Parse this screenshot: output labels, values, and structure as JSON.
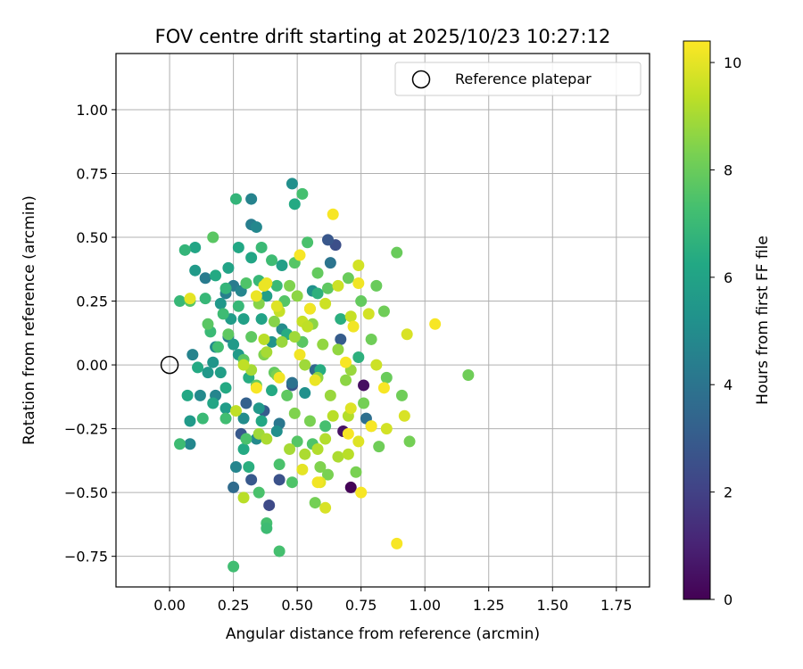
{
  "chart_data": {
    "type": "scatter",
    "title": "FOV centre drift starting at 2025/10/23 10:27:12",
    "xlabel": "Angular distance from reference (arcmin)",
    "ylabel": "Rotation from reference (arcmin)",
    "xlim": [
      -0.21,
      1.88
    ],
    "ylim": [
      -0.87,
      1.22
    ],
    "xticks": [
      0.0,
      0.25,
      0.5,
      0.75,
      1.0,
      1.25,
      1.5,
      1.75
    ],
    "xtick_labels": [
      "0.00",
      "0.25",
      "0.50",
      "0.75",
      "1.00",
      "1.25",
      "1.50",
      "1.75"
    ],
    "yticks": [
      -0.75,
      -0.5,
      -0.25,
      0.0,
      0.25,
      0.5,
      0.75,
      1.0
    ],
    "ytick_labels": [
      "−0.75",
      "−0.50",
      "−0.25",
      "0.00",
      "0.25",
      "0.50",
      "0.75",
      "1.00"
    ],
    "grid": true,
    "legend": {
      "position": "top-right",
      "entries": [
        "Reference platepar"
      ]
    },
    "reference_point": {
      "label": "Reference platepar",
      "x": 0.0,
      "y": 0.0
    },
    "colorbar": {
      "label": "Hours from first FF file",
      "colormap": "viridis",
      "range": [
        0,
        10.4
      ],
      "ticks": [
        0,
        2,
        4,
        6,
        8,
        10
      ],
      "tick_labels": [
        "0",
        "2",
        "4",
        "6",
        "8",
        "10"
      ]
    },
    "points": [
      {
        "x": 0.71,
        "y": -0.48,
        "h": 0.1
      },
      {
        "x": 0.76,
        "y": -0.08,
        "h": 0.4
      },
      {
        "x": 0.68,
        "y": -0.26,
        "h": 0.5
      },
      {
        "x": 0.39,
        "y": -0.55,
        "h": 2.3
      },
      {
        "x": 0.43,
        "y": -0.45,
        "h": 2.6
      },
      {
        "x": 0.32,
        "y": -0.45,
        "h": 2.9
      },
      {
        "x": 0.28,
        "y": -0.27,
        "h": 2.9
      },
      {
        "x": 0.48,
        "y": -0.08,
        "h": 2.7
      },
      {
        "x": 0.65,
        "y": 0.47,
        "h": 2.5
      },
      {
        "x": 0.62,
        "y": 0.49,
        "h": 2.8
      },
      {
        "x": 0.67,
        "y": 0.1,
        "h": 3.0
      },
      {
        "x": 0.3,
        "y": -0.15,
        "h": 3.2
      },
      {
        "x": 0.37,
        "y": -0.18,
        "h": 3.0
      },
      {
        "x": 0.25,
        "y": -0.48,
        "h": 3.6
      },
      {
        "x": 0.77,
        "y": -0.21,
        "h": 3.8
      },
      {
        "x": 0.63,
        "y": 0.4,
        "h": 4.0
      },
      {
        "x": 0.57,
        "y": -0.02,
        "h": 3.5
      },
      {
        "x": 0.43,
        "y": -0.23,
        "h": 4.1
      },
      {
        "x": 0.48,
        "y": -0.07,
        "h": 3.9
      },
      {
        "x": 0.25,
        "y": 0.31,
        "h": 4.3
      },
      {
        "x": 0.22,
        "y": 0.28,
        "h": 4.5
      },
      {
        "x": 0.14,
        "y": 0.34,
        "h": 4.3
      },
      {
        "x": 0.32,
        "y": 0.55,
        "h": 4.4
      },
      {
        "x": 0.34,
        "y": 0.54,
        "h": 4.8
      },
      {
        "x": 0.32,
        "y": 0.65,
        "h": 4.6
      },
      {
        "x": 0.28,
        "y": 0.29,
        "h": 4.7
      },
      {
        "x": 0.18,
        "y": 0.07,
        "h": 4.9
      },
      {
        "x": 0.23,
        "y": 0.11,
        "h": 4.4
      },
      {
        "x": 0.08,
        "y": -0.31,
        "h": 4.8
      },
      {
        "x": 0.12,
        "y": -0.12,
        "h": 4.9
      },
      {
        "x": 0.09,
        "y": 0.04,
        "h": 4.6
      },
      {
        "x": 0.18,
        "y": -0.12,
        "h": 4.7
      },
      {
        "x": 0.26,
        "y": -0.4,
        "h": 4.7
      },
      {
        "x": 0.29,
        "y": -0.21,
        "h": 5.0
      },
      {
        "x": 0.34,
        "y": -0.29,
        "h": 4.9
      },
      {
        "x": 0.42,
        "y": -0.26,
        "h": 5.1
      },
      {
        "x": 0.53,
        "y": -0.11,
        "h": 5.2
      },
      {
        "x": 0.44,
        "y": 0.14,
        "h": 5.0
      },
      {
        "x": 0.48,
        "y": 0.71,
        "h": 5.1
      },
      {
        "x": 0.56,
        "y": 0.29,
        "h": 5.2
      },
      {
        "x": 0.4,
        "y": 0.09,
        "h": 5.3
      },
      {
        "x": 0.2,
        "y": 0.24,
        "h": 5.5
      },
      {
        "x": 0.17,
        "y": 0.01,
        "h": 5.4
      },
      {
        "x": 0.1,
        "y": 0.37,
        "h": 5.6
      },
      {
        "x": 0.15,
        "y": -0.03,
        "h": 5.5
      },
      {
        "x": 0.08,
        "y": -0.22,
        "h": 5.6
      },
      {
        "x": 0.22,
        "y": -0.17,
        "h": 5.7
      },
      {
        "x": 0.35,
        "y": -0.17,
        "h": 5.5
      },
      {
        "x": 0.2,
        "y": -0.03,
        "h": 5.8
      },
      {
        "x": 0.27,
        "y": 0.04,
        "h": 5.6
      },
      {
        "x": 0.29,
        "y": 0.18,
        "h": 5.9
      },
      {
        "x": 0.24,
        "y": 0.18,
        "h": 5.7
      },
      {
        "x": 0.25,
        "y": 0.08,
        "h": 5.6
      },
      {
        "x": 0.38,
        "y": 0.27,
        "h": 5.8
      },
      {
        "x": 0.44,
        "y": 0.39,
        "h": 5.9
      },
      {
        "x": 0.36,
        "y": 0.18,
        "h": 6.0
      },
      {
        "x": 0.49,
        "y": 0.63,
        "h": 6.3
      },
      {
        "x": 0.32,
        "y": 0.42,
        "h": 6.1
      },
      {
        "x": 0.27,
        "y": 0.46,
        "h": 6.2
      },
      {
        "x": 0.23,
        "y": 0.38,
        "h": 6.0
      },
      {
        "x": 0.18,
        "y": 0.35,
        "h": 6.3
      },
      {
        "x": 0.1,
        "y": 0.46,
        "h": 6.1
      },
      {
        "x": 0.07,
        "y": -0.12,
        "h": 6.2
      },
      {
        "x": 0.11,
        "y": -0.01,
        "h": 6.3
      },
      {
        "x": 0.17,
        "y": -0.15,
        "h": 6.1
      },
      {
        "x": 0.22,
        "y": -0.09,
        "h": 6.3
      },
      {
        "x": 0.31,
        "y": -0.05,
        "h": 6.4
      },
      {
        "x": 0.29,
        "y": -0.33,
        "h": 6.3
      },
      {
        "x": 0.31,
        "y": -0.4,
        "h": 6.5
      },
      {
        "x": 0.36,
        "y": -0.22,
        "h": 6.2
      },
      {
        "x": 0.4,
        "y": -0.1,
        "h": 6.3
      },
      {
        "x": 0.46,
        "y": 0.12,
        "h": 6.4
      },
      {
        "x": 0.52,
        "y": 0.09,
        "h": 6.5
      },
      {
        "x": 0.59,
        "y": -0.02,
        "h": 6.4
      },
      {
        "x": 0.58,
        "y": 0.28,
        "h": 6.6
      },
      {
        "x": 0.67,
        "y": 0.18,
        "h": 6.5
      },
      {
        "x": 0.74,
        "y": 0.03,
        "h": 6.6
      },
      {
        "x": 0.26,
        "y": 0.65,
        "h": 6.8
      },
      {
        "x": 0.04,
        "y": 0.25,
        "h": 6.9
      },
      {
        "x": 0.06,
        "y": 0.45,
        "h": 6.8
      },
      {
        "x": 0.14,
        "y": 0.26,
        "h": 6.9
      },
      {
        "x": 0.22,
        "y": 0.3,
        "h": 6.8
      },
      {
        "x": 0.36,
        "y": 0.46,
        "h": 7.0
      },
      {
        "x": 0.4,
        "y": 0.41,
        "h": 7.1
      },
      {
        "x": 0.42,
        "y": 0.31,
        "h": 7.0
      },
      {
        "x": 0.35,
        "y": 0.33,
        "h": 6.9
      },
      {
        "x": 0.27,
        "y": 0.23,
        "h": 6.9
      },
      {
        "x": 0.16,
        "y": 0.13,
        "h": 7.0
      },
      {
        "x": 0.21,
        "y": 0.2,
        "h": 7.1
      },
      {
        "x": 0.19,
        "y": 0.07,
        "h": 7.2
      },
      {
        "x": 0.13,
        "y": -0.21,
        "h": 7.0
      },
      {
        "x": 0.04,
        "y": -0.31,
        "h": 7.1
      },
      {
        "x": 0.22,
        "y": -0.21,
        "h": 7.2
      },
      {
        "x": 0.25,
        "y": -0.79,
        "h": 7.2
      },
      {
        "x": 0.38,
        "y": -0.62,
        "h": 7.3
      },
      {
        "x": 0.38,
        "y": -0.64,
        "h": 7.1
      },
      {
        "x": 0.43,
        "y": -0.73,
        "h": 7.3
      },
      {
        "x": 0.35,
        "y": -0.5,
        "h": 7.4
      },
      {
        "x": 0.43,
        "y": -0.39,
        "h": 7.4
      },
      {
        "x": 0.48,
        "y": -0.46,
        "h": 7.5
      },
      {
        "x": 0.3,
        "y": -0.29,
        "h": 7.4
      },
      {
        "x": 0.5,
        "y": -0.3,
        "h": 7.6
      },
      {
        "x": 0.56,
        "y": -0.31,
        "h": 7.5
      },
      {
        "x": 0.61,
        "y": -0.24,
        "h": 7.3
      },
      {
        "x": 0.52,
        "y": 0.67,
        "h": 7.3
      },
      {
        "x": 0.54,
        "y": 0.48,
        "h": 7.4
      },
      {
        "x": 0.49,
        "y": 0.4,
        "h": 7.6
      },
      {
        "x": 0.45,
        "y": 0.25,
        "h": 7.6
      },
      {
        "x": 0.3,
        "y": 0.32,
        "h": 7.5
      },
      {
        "x": 0.17,
        "y": 0.5,
        "h": 7.7
      },
      {
        "x": 0.08,
        "y": 0.25,
        "h": 7.6
      },
      {
        "x": 0.15,
        "y": 0.16,
        "h": 7.7
      },
      {
        "x": 0.23,
        "y": 0.12,
        "h": 7.8
      },
      {
        "x": 0.32,
        "y": 0.11,
        "h": 7.8
      },
      {
        "x": 0.29,
        "y": 0.02,
        "h": 7.7
      },
      {
        "x": 0.34,
        "y": -0.08,
        "h": 7.9
      },
      {
        "x": 0.41,
        "y": -0.03,
        "h": 7.9
      },
      {
        "x": 0.46,
        "y": -0.12,
        "h": 7.8
      },
      {
        "x": 0.52,
        "y": 0.09,
        "h": 7.7
      },
      {
        "x": 0.58,
        "y": 0.36,
        "h": 7.9
      },
      {
        "x": 0.62,
        "y": 0.3,
        "h": 7.8
      },
      {
        "x": 0.7,
        "y": 0.34,
        "h": 8.0
      },
      {
        "x": 0.75,
        "y": 0.25,
        "h": 7.9
      },
      {
        "x": 0.81,
        "y": 0.31,
        "h": 8.0
      },
      {
        "x": 0.84,
        "y": 0.21,
        "h": 8.1
      },
      {
        "x": 0.89,
        "y": 0.44,
        "h": 8.0
      },
      {
        "x": 0.79,
        "y": 0.1,
        "h": 8.1
      },
      {
        "x": 0.85,
        "y": -0.05,
        "h": 8.0
      },
      {
        "x": 0.91,
        "y": -0.12,
        "h": 8.1
      },
      {
        "x": 0.94,
        "y": -0.3,
        "h": 8.2
      },
      {
        "x": 0.82,
        "y": -0.32,
        "h": 8.1
      },
      {
        "x": 0.79,
        "y": -0.24,
        "h": 8.2
      },
      {
        "x": 0.73,
        "y": -0.42,
        "h": 8.3
      },
      {
        "x": 0.76,
        "y": -0.15,
        "h": 8.2
      },
      {
        "x": 1.17,
        "y": -0.04,
        "h": 8.1
      },
      {
        "x": 0.57,
        "y": -0.54,
        "h": 8.2
      },
      {
        "x": 0.62,
        "y": -0.43,
        "h": 8.3
      },
      {
        "x": 0.59,
        "y": -0.4,
        "h": 8.4
      },
      {
        "x": 0.55,
        "y": -0.22,
        "h": 8.3
      },
      {
        "x": 0.49,
        "y": -0.19,
        "h": 8.4
      },
      {
        "x": 0.42,
        "y": -0.04,
        "h": 8.3
      },
      {
        "x": 0.37,
        "y": 0.04,
        "h": 8.4
      },
      {
        "x": 0.35,
        "y": 0.24,
        "h": 8.5
      },
      {
        "x": 0.41,
        "y": 0.17,
        "h": 8.5
      },
      {
        "x": 0.47,
        "y": 0.31,
        "h": 8.4
      },
      {
        "x": 0.5,
        "y": 0.27,
        "h": 8.6
      },
      {
        "x": 0.56,
        "y": 0.16,
        "h": 8.6
      },
      {
        "x": 0.55,
        "y": 0.22,
        "h": 8.5
      },
      {
        "x": 0.6,
        "y": 0.08,
        "h": 8.7
      },
      {
        "x": 0.66,
        "y": 0.06,
        "h": 8.7
      },
      {
        "x": 0.69,
        "y": -0.06,
        "h": 8.6
      },
      {
        "x": 0.71,
        "y": -0.02,
        "h": 8.8
      },
      {
        "x": 0.63,
        "y": -0.12,
        "h": 8.8
      },
      {
        "x": 0.58,
        "y": -0.05,
        "h": 8.7
      },
      {
        "x": 0.53,
        "y": 0.0,
        "h": 8.9
      },
      {
        "x": 0.49,
        "y": 0.11,
        "h": 8.9
      },
      {
        "x": 0.44,
        "y": 0.09,
        "h": 8.8
      },
      {
        "x": 0.38,
        "y": 0.05,
        "h": 9.0
      },
      {
        "x": 0.32,
        "y": -0.02,
        "h": 9.0
      },
      {
        "x": 0.35,
        "y": -0.27,
        "h": 8.9
      },
      {
        "x": 0.38,
        "y": -0.29,
        "h": 9.1
      },
      {
        "x": 0.47,
        "y": -0.33,
        "h": 9.0
      },
      {
        "x": 0.53,
        "y": -0.35,
        "h": 9.1
      },
      {
        "x": 0.58,
        "y": -0.33,
        "h": 9.2
      },
      {
        "x": 0.61,
        "y": -0.29,
        "h": 9.2
      },
      {
        "x": 0.66,
        "y": -0.36,
        "h": 9.1
      },
      {
        "x": 0.7,
        "y": -0.35,
        "h": 9.3
      },
      {
        "x": 0.64,
        "y": -0.2,
        "h": 9.3
      },
      {
        "x": 0.7,
        "y": -0.2,
        "h": 9.2
      },
      {
        "x": 0.29,
        "y": -0.52,
        "h": 9.3
      },
      {
        "x": 0.26,
        "y": -0.18,
        "h": 9.4
      },
      {
        "x": 0.29,
        "y": 0.0,
        "h": 9.4
      },
      {
        "x": 0.37,
        "y": 0.1,
        "h": 9.3
      },
      {
        "x": 0.43,
        "y": 0.21,
        "h": 9.5
      },
      {
        "x": 0.52,
        "y": 0.17,
        "h": 9.5
      },
      {
        "x": 0.54,
        "y": 0.15,
        "h": 9.4
      },
      {
        "x": 0.61,
        "y": 0.24,
        "h": 9.6
      },
      {
        "x": 0.66,
        "y": 0.31,
        "h": 9.6
      },
      {
        "x": 0.71,
        "y": 0.19,
        "h": 9.5
      },
      {
        "x": 0.74,
        "y": 0.39,
        "h": 9.7
      },
      {
        "x": 0.78,
        "y": 0.2,
        "h": 9.7
      },
      {
        "x": 0.81,
        "y": 0.0,
        "h": 9.6
      },
      {
        "x": 0.93,
        "y": 0.12,
        "h": 9.8
      },
      {
        "x": 0.92,
        "y": -0.2,
        "h": 9.8
      },
      {
        "x": 0.85,
        "y": -0.25,
        "h": 9.7
      },
      {
        "x": 0.74,
        "y": -0.3,
        "h": 9.9
      },
      {
        "x": 0.71,
        "y": -0.17,
        "h": 9.9
      },
      {
        "x": 0.61,
        "y": -0.56,
        "h": 9.8
      },
      {
        "x": 0.52,
        "y": -0.41,
        "h": 10.0
      },
      {
        "x": 0.59,
        "y": -0.46,
        "h": 10.0
      },
      {
        "x": 0.42,
        "y": 0.23,
        "h": 9.9
      },
      {
        "x": 0.38,
        "y": 0.32,
        "h": 10.1
      },
      {
        "x": 0.34,
        "y": 0.27,
        "h": 10.1
      },
      {
        "x": 0.08,
        "y": 0.26,
        "h": 10.0
      },
      {
        "x": 0.55,
        "y": 0.22,
        "h": 10.2
      },
      {
        "x": 0.51,
        "y": 0.04,
        "h": 10.2
      },
      {
        "x": 0.57,
        "y": -0.06,
        "h": 10.1
      },
      {
        "x": 0.69,
        "y": 0.01,
        "h": 10.3
      },
      {
        "x": 0.64,
        "y": 0.59,
        "h": 10.3
      },
      {
        "x": 0.72,
        "y": 0.15,
        "h": 10.2
      },
      {
        "x": 0.79,
        "y": -0.24,
        "h": 10.3
      },
      {
        "x": 0.7,
        "y": -0.27,
        "h": 10.3
      },
      {
        "x": 0.75,
        "y": -0.5,
        "h": 10.3
      },
      {
        "x": 0.58,
        "y": -0.46,
        "h": 10.2
      },
      {
        "x": 1.04,
        "y": 0.16,
        "h": 10.3
      },
      {
        "x": 0.89,
        "y": -0.7,
        "h": 10.3
      },
      {
        "x": 0.74,
        "y": 0.32,
        "h": 10.2
      },
      {
        "x": 0.34,
        "y": -0.09,
        "h": 10.3
      },
      {
        "x": 0.43,
        "y": -0.05,
        "h": 10.2
      },
      {
        "x": 0.51,
        "y": 0.43,
        "h": 10.3
      },
      {
        "x": 0.37,
        "y": 0.31,
        "h": 10.1
      },
      {
        "x": 0.84,
        "y": -0.09,
        "h": 10.3
      }
    ]
  }
}
